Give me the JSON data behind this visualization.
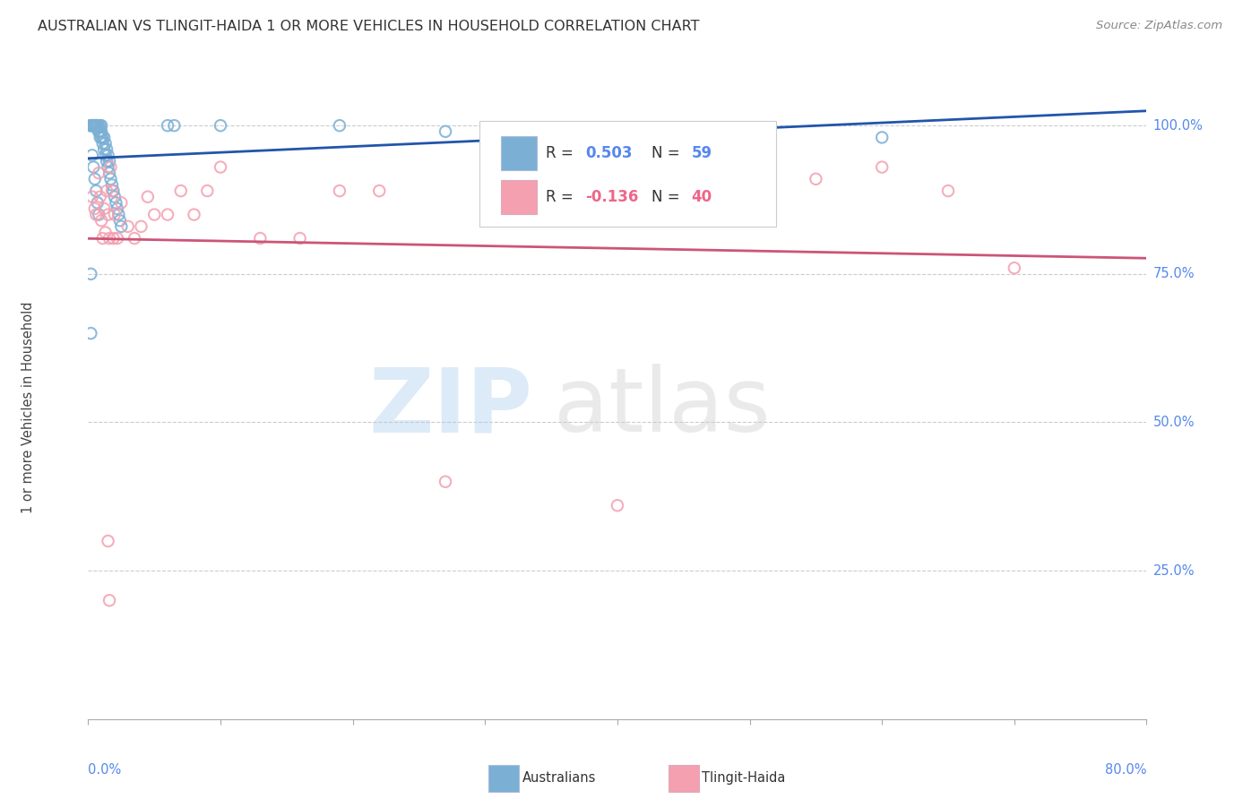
{
  "title": "AUSTRALIAN VS TLINGIT-HAIDA 1 OR MORE VEHICLES IN HOUSEHOLD CORRELATION CHART",
  "source": "Source: ZipAtlas.com",
  "ylabel": "1 or more Vehicles in Household",
  "xlim": [
    0.0,
    80.0
  ],
  "ylim": [
    0.0,
    105.0
  ],
  "australian_color": "#7BAFD4",
  "tlingit_color": "#F4A0B0",
  "line_australian": "#2255AA",
  "line_tlingit": "#CC5577",
  "background_color": "#FFFFFF",
  "aus_x": [
    0.2,
    0.3,
    0.3,
    0.4,
    0.4,
    0.5,
    0.5,
    0.5,
    0.6,
    0.6,
    0.6,
    0.7,
    0.7,
    0.8,
    0.8,
    0.8,
    0.9,
    0.9,
    0.9,
    1.0,
    1.0,
    1.0,
    1.1,
    1.1,
    1.2,
    1.2,
    1.3,
    1.3,
    1.4,
    1.4,
    1.5,
    1.5,
    1.6,
    1.6,
    1.7,
    1.8,
    1.9,
    2.0,
    2.1,
    2.2,
    2.3,
    2.4,
    2.5,
    0.3,
    0.4,
    0.5,
    0.6,
    0.7,
    0.8,
    6.0,
    6.5,
    10.0,
    19.0,
    27.0,
    40.0,
    60.0,
    0.2,
    0.2,
    0.15
  ],
  "aus_y": [
    100,
    100,
    100,
    100,
    100,
    100,
    100,
    100,
    100,
    100,
    100,
    100,
    100,
    99,
    100,
    99,
    98,
    99,
    100,
    98,
    99,
    100,
    97,
    98,
    96,
    98,
    95,
    97,
    94,
    96,
    93,
    95,
    92,
    94,
    91,
    90,
    89,
    88,
    87,
    86,
    85,
    84,
    83,
    95,
    93,
    91,
    89,
    87,
    85,
    100,
    100,
    100,
    100,
    99,
    99,
    98,
    75,
    65,
    100
  ],
  "tl_x": [
    0.3,
    0.5,
    0.6,
    0.8,
    0.9,
    1.0,
    1.1,
    1.2,
    1.3,
    1.4,
    1.5,
    1.6,
    1.7,
    1.8,
    1.9,
    2.0,
    2.2,
    2.5,
    3.0,
    3.5,
    4.0,
    4.5,
    5.0,
    6.0,
    7.0,
    8.0,
    9.0,
    10.0,
    13.0,
    16.0,
    19.0,
    22.0,
    27.0,
    40.0,
    55.0,
    60.0,
    65.0,
    70.0,
    1.5,
    1.6
  ],
  "tl_y": [
    88,
    86,
    85,
    92,
    88,
    84,
    81,
    86,
    82,
    89,
    85,
    81,
    93,
    89,
    81,
    85,
    81,
    87,
    83,
    81,
    83,
    88,
    85,
    85,
    89,
    85,
    89,
    93,
    81,
    81,
    89,
    89,
    40,
    36,
    91,
    93,
    89,
    76,
    30,
    20
  ]
}
